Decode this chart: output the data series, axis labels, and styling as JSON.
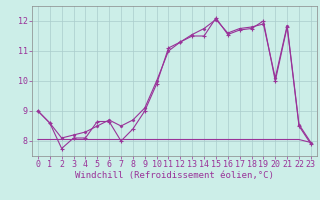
{
  "background_color": "#cceee8",
  "grid_color": "#aacccc",
  "line_color": "#993399",
  "xlabel": "Windchill (Refroidissement éolien,°C)",
  "xlabel_fontsize": 6.5,
  "tick_fontsize": 6,
  "ylim": [
    7.5,
    12.5
  ],
  "xlim": [
    -0.5,
    23.5
  ],
  "yticks": [
    8,
    9,
    10,
    11,
    12
  ],
  "xticks": [
    0,
    1,
    2,
    3,
    4,
    5,
    6,
    7,
    8,
    9,
    10,
    11,
    12,
    13,
    14,
    15,
    16,
    17,
    18,
    19,
    20,
    21,
    22,
    23
  ],
  "series1_x": [
    0,
    1,
    2,
    3,
    4,
    5,
    6,
    7,
    8,
    9,
    10,
    11,
    12,
    13,
    14,
    15,
    16,
    17,
    18,
    19,
    20,
    21,
    22,
    23
  ],
  "series1_y": [
    9.0,
    8.6,
    7.75,
    8.1,
    8.1,
    8.65,
    8.65,
    8.0,
    8.4,
    9.0,
    9.9,
    11.1,
    11.3,
    11.5,
    11.5,
    12.1,
    11.55,
    11.7,
    11.75,
    12.0,
    10.0,
    11.8,
    8.5,
    7.9
  ],
  "series2_x": [
    0,
    1,
    2,
    3,
    4,
    5,
    6,
    7,
    8,
    9,
    10,
    11,
    12,
    13,
    14,
    15,
    16,
    17,
    18,
    19,
    20,
    21,
    22,
    23
  ],
  "series2_y": [
    9.0,
    8.6,
    8.1,
    8.2,
    8.3,
    8.5,
    8.7,
    8.5,
    8.7,
    9.1,
    10.0,
    11.0,
    11.3,
    11.55,
    11.75,
    12.05,
    11.6,
    11.75,
    11.8,
    11.9,
    10.1,
    11.85,
    8.55,
    7.95
  ],
  "series3_x": [
    0,
    1,
    2,
    3,
    4,
    5,
    6,
    7,
    8,
    9,
    10,
    11,
    12,
    13,
    14,
    15,
    16,
    17,
    18,
    19,
    20,
    21,
    22,
    23
  ],
  "series3_y": [
    8.05,
    8.05,
    8.05,
    8.05,
    8.05,
    8.05,
    8.05,
    8.05,
    8.05,
    8.05,
    8.05,
    8.05,
    8.05,
    8.05,
    8.05,
    8.05,
    8.05,
    8.05,
    8.05,
    8.05,
    8.05,
    8.05,
    8.05,
    7.95
  ]
}
